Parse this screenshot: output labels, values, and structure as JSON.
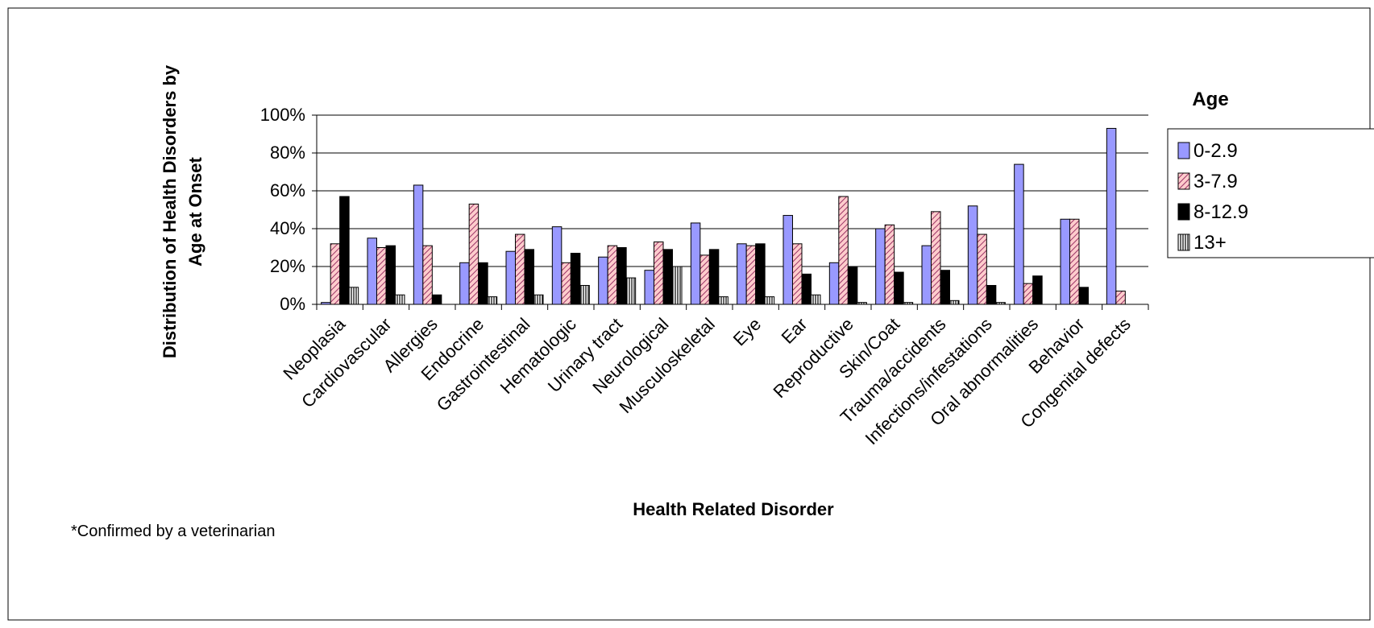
{
  "chart_data": {
    "type": "bar",
    "xlabel": "Health Related Disorder",
    "ylabel_lines": [
      "Distribution of Health Disorders by",
      "Age at Onset"
    ],
    "legend_title": "Age",
    "legend_placement": "right",
    "footnote": "*Confirmed by a veterinarian",
    "ylim": [
      0,
      100
    ],
    "y_ticks": [
      0,
      20,
      40,
      60,
      80,
      100
    ],
    "y_tick_labels": [
      "0%",
      "20%",
      "40%",
      "60%",
      "80%",
      "100%"
    ],
    "grid": true,
    "categories": [
      "Neoplasia",
      "Cardiovascular",
      "Allergies",
      "Endocrine",
      "Gastrointestinal",
      "Hematologic",
      "Urinary tract",
      "Neurological",
      "Musculoskeletal",
      "Eye",
      "Ear",
      "Reproductive",
      "Skin/Coat",
      "Trauma/accidents",
      "Infections/infestations",
      "Oral abnormalities",
      "Behavior",
      "Congenital defects"
    ],
    "series": [
      {
        "name": "0-2.9",
        "fill": "#9999ff",
        "pattern": "solid",
        "values": [
          1,
          35,
          63,
          22,
          28,
          41,
          25,
          18,
          43,
          32,
          47,
          22,
          40,
          31,
          52,
          74,
          45,
          93
        ]
      },
      {
        "name": "3-7.9",
        "fill": "#ffcccc",
        "stripe": "#993366",
        "pattern": "diagonal",
        "values": [
          32,
          30,
          31,
          53,
          37,
          22,
          31,
          33,
          26,
          31,
          32,
          57,
          42,
          49,
          37,
          11,
          45,
          7
        ]
      },
      {
        "name": "8-12.9",
        "fill": "#000000",
        "pattern": "solid",
        "values": [
          57,
          31,
          5,
          22,
          29,
          27,
          30,
          29,
          29,
          32,
          16,
          20,
          17,
          18,
          10,
          15,
          9,
          0
        ]
      },
      {
        "name": "13+",
        "fill": "#ffffff",
        "stripe": "#000000",
        "pattern": "vertical",
        "values": [
          9,
          5,
          0,
          4,
          5,
          10,
          14,
          20,
          4,
          4,
          5,
          1,
          1,
          2,
          1,
          0,
          0,
          0
        ]
      }
    ]
  }
}
